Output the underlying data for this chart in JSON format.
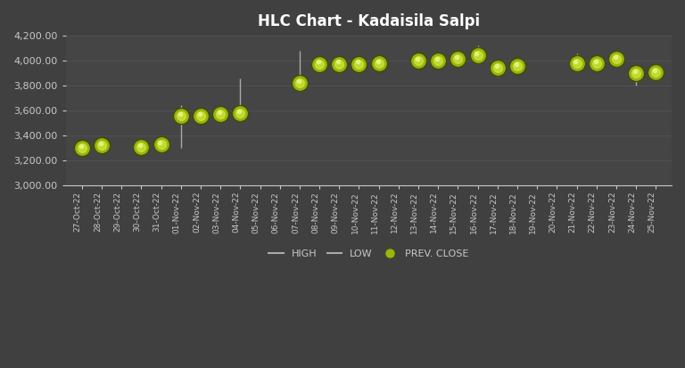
{
  "title": "HLC Chart - Kadaisila Salpi",
  "background_color": "#404040",
  "plot_bg_color": "#454545",
  "text_color": "#c8c8c8",
  "grid_color": "#5a5a5a",
  "bar_color": "#aaaaaa",
  "marker_color": "#9ab510",
  "marker_highlight": "#d4e840",
  "dates": [
    "27-Oct-22",
    "28-Oct-22",
    "29-Oct-22",
    "30-Oct-22",
    "31-Oct-22",
    "01-Nov-22",
    "02-Nov-22",
    "03-Nov-22",
    "04-Nov-22",
    "05-Nov-22",
    "06-Nov-22",
    "07-Nov-22",
    "08-Nov-22",
    "09-Nov-22",
    "10-Nov-22",
    "11-Nov-22",
    "12-Nov-22",
    "13-Nov-22",
    "14-Nov-22",
    "15-Nov-22",
    "16-Nov-22",
    "17-Nov-22",
    "18-Nov-22",
    "19-Nov-22",
    "20-Nov-22",
    "21-Nov-22",
    "22-Nov-22",
    "23-Nov-22",
    "24-Nov-22",
    "25-Nov-22"
  ],
  "high": [
    3350,
    3360,
    null,
    3340,
    3360,
    3640,
    3580,
    3600,
    3860,
    null,
    null,
    4080,
    4020,
    4000,
    4000,
    4000,
    null,
    4060,
    4020,
    4040,
    4120,
    3960,
    3980,
    null,
    null,
    4060,
    4020,
    4060,
    3960,
    3940
  ],
  "low": [
    3280,
    3300,
    null,
    3290,
    3310,
    3300,
    3540,
    3540,
    3540,
    null,
    null,
    3820,
    3950,
    3950,
    3960,
    3960,
    null,
    3990,
    3980,
    3990,
    3990,
    3870,
    3940,
    null,
    null,
    3960,
    3960,
    3960,
    3800,
    3860
  ],
  "close": [
    3300,
    3320,
    null,
    3310,
    3330,
    3560,
    3555,
    3570,
    3580,
    null,
    null,
    3820,
    3975,
    3975,
    3975,
    3980,
    null,
    4000,
    3998,
    4015,
    4040,
    3940,
    3960,
    null,
    null,
    3980,
    3980,
    4015,
    3900,
    3910
  ],
  "ylim": [
    3000,
    4200
  ],
  "yticks": [
    3000,
    3200,
    3400,
    3600,
    3800,
    4000,
    4200
  ],
  "figwidth": 7.68,
  "figheight": 4.13,
  "dpi": 100
}
